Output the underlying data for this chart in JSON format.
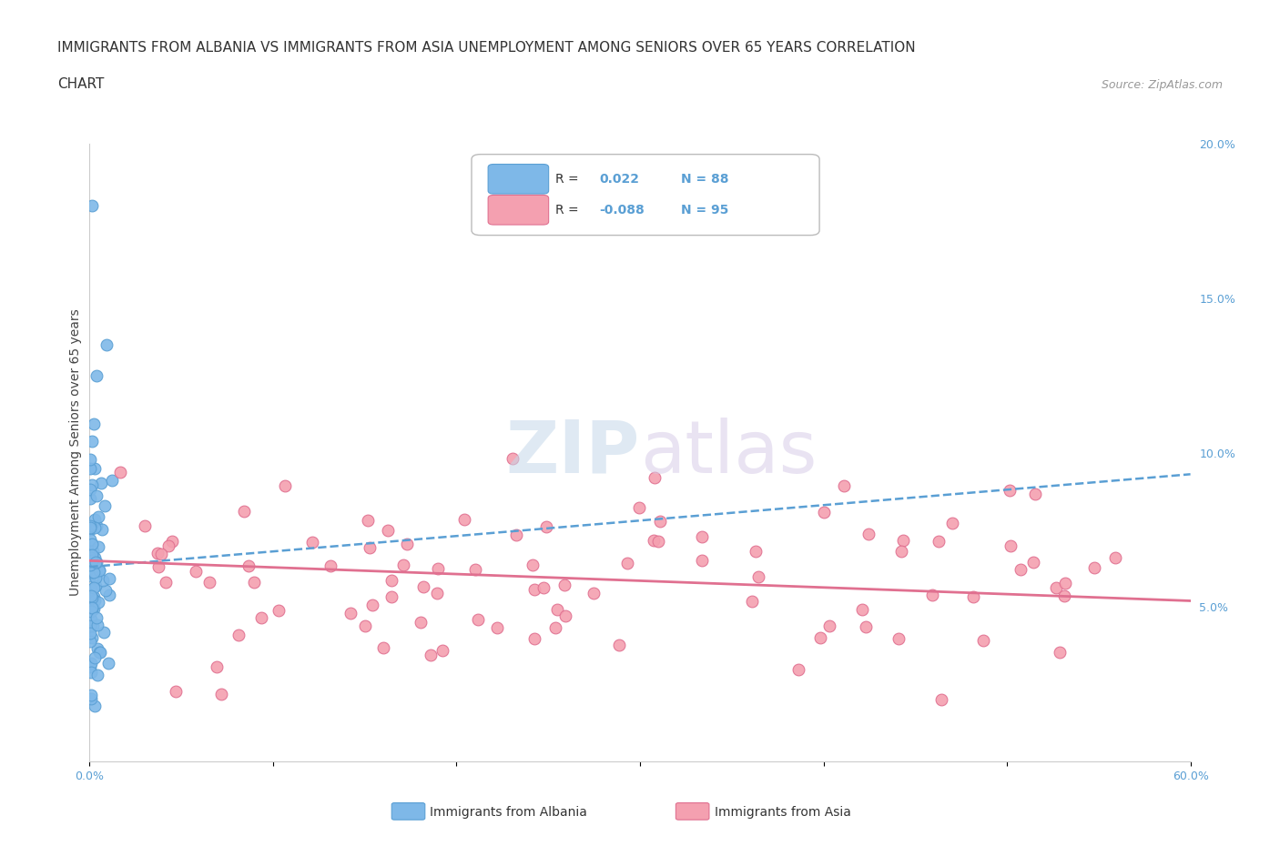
{
  "title_line1": "IMMIGRANTS FROM ALBANIA VS IMMIGRANTS FROM ASIA UNEMPLOYMENT AMONG SENIORS OVER 65 YEARS CORRELATION",
  "title_line2": "CHART",
  "source": "Source: ZipAtlas.com",
  "ylabel": "Unemployment Among Seniors over 65 years",
  "xlim": [
    0.0,
    0.6
  ],
  "ylim": [
    0.0,
    0.2
  ],
  "yticks_right": [
    0.05,
    0.1,
    0.15,
    0.2
  ],
  "ytick_right_labels": [
    "5.0%",
    "10.0%",
    "15.0%",
    "20.0%"
  ],
  "albania_color": "#7eb8e8",
  "albania_edge_color": "#5a9fd4",
  "asia_color": "#f4a0b0",
  "asia_edge_color": "#e07090",
  "albania_trend_color": "#5a9fd4",
  "asia_trend_color": "#e07090",
  "legend_label1": "Immigrants from Albania",
  "legend_label2": "Immigrants from Asia",
  "background_color": "#ffffff",
  "grid_color": "#dddddd",
  "albania_R": 0.022,
  "albania_N": 88,
  "asia_R": -0.088,
  "asia_N": 95,
  "title_fontsize": 11,
  "source_fontsize": 9,
  "axis_label_fontsize": 10,
  "tick_fontsize": 9,
  "legend_fontsize": 10,
  "tick_color": "#5a9fd4"
}
